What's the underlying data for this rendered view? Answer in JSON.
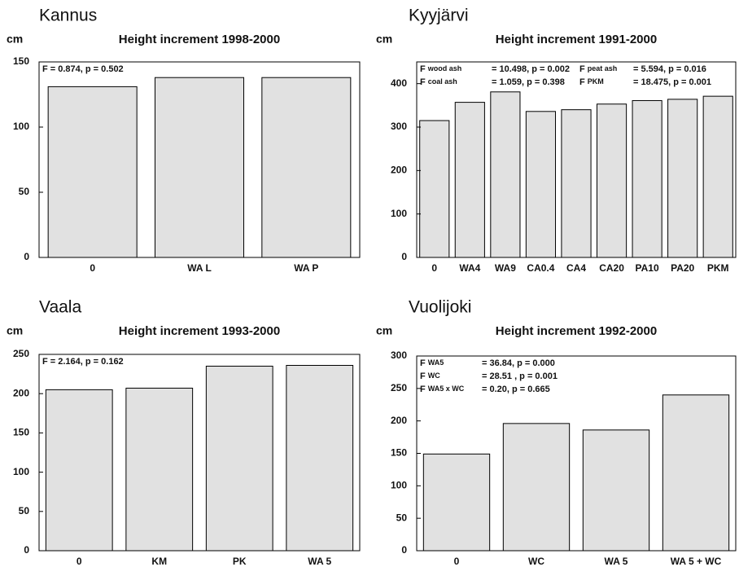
{
  "chart_data": [
    {
      "type": "bar",
      "site": "Kannus",
      "ylabel": "cm",
      "title": "Height increment 1998-2000",
      "annotations": [
        "F = 0.874, p = 0.502"
      ],
      "categories": [
        "0",
        "WA L",
        "WA P"
      ],
      "values": [
        131,
        138,
        138
      ],
      "ylim": [
        0,
        150
      ],
      "yticks": [
        0,
        50,
        100,
        150
      ],
      "color": "#e1e1e1"
    },
    {
      "type": "bar",
      "site": "Kyyjärvi",
      "ylabel": "cm",
      "title": "Height increment 1991-2000",
      "annotations": [
        {
          "f": "F",
          "sub": "wood ash",
          "text": "= 10.498, p = 0.002"
        },
        {
          "f": "F",
          "sub": "peat ash",
          "text": "= 5.594, p = 0.016"
        },
        {
          "f": "F",
          "sub": "coal ash",
          "text": "= 1.059,  p = 0.398"
        },
        {
          "f": "F",
          "sub": "PKM",
          "text": "= 18.475, p = 0.001"
        }
      ],
      "categories": [
        "0",
        "WA4",
        "WA9",
        "CA0.4",
        "CA4",
        "CA20",
        "PA10",
        "PA20",
        "PKM"
      ],
      "values": [
        315,
        357,
        381,
        336,
        340,
        353,
        361,
        364,
        371
      ],
      "ylim": [
        0,
        450
      ],
      "yticks": [
        0,
        100,
        200,
        300,
        400
      ],
      "color": "#e1e1e1"
    },
    {
      "type": "bar",
      "site": "Vaala",
      "ylabel": "cm",
      "title": "Height increment 1993-2000",
      "annotations": [
        "F = 2.164, p = 0.162"
      ],
      "categories": [
        "0",
        "KM",
        "PK",
        "WA 5"
      ],
      "values": [
        205,
        207,
        235,
        236
      ],
      "ylim": [
        0,
        250
      ],
      "yticks": [
        0,
        50,
        100,
        150,
        200,
        250
      ],
      "color": "#e1e1e1"
    },
    {
      "type": "bar",
      "site": "Vuolijoki",
      "ylabel": "cm",
      "title": "Height increment 1992-2000",
      "annotations": [
        {
          "f": "F",
          "sub": "WA5",
          "text": "= 36.84, p = 0.000"
        },
        {
          "f": "F",
          "sub": "WC",
          "text": "= 28.51 , p = 0.001"
        },
        {
          "f": "F",
          "sub": "WA5 x WC",
          "text": "= 0.20, p = 0.665"
        }
      ],
      "categories": [
        "0",
        "WC",
        "WA 5",
        "WA 5 + WC"
      ],
      "values": [
        149,
        196,
        186,
        240
      ],
      "ylim": [
        0,
        300
      ],
      "yticks": [
        0,
        50,
        100,
        150,
        200,
        250,
        300
      ],
      "color": "#e1e1e1"
    }
  ]
}
